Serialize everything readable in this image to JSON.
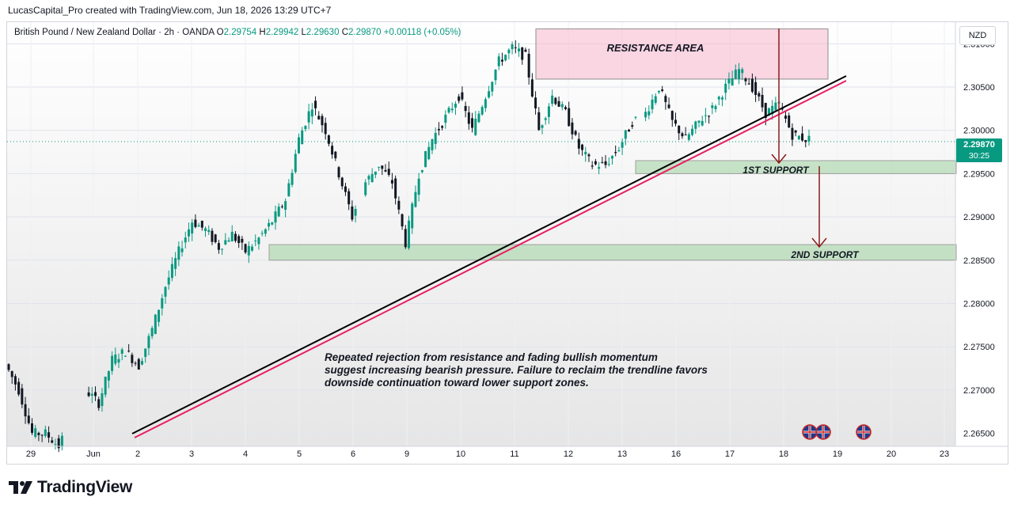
{
  "header": {
    "credit": "LucasCapital_Pro created with TradingView.com, Jun 18, 2026 13:29 UTC+7"
  },
  "legend": {
    "symbol": "British Pound / New Zealand Dollar · 2h · OANDA",
    "o_label": "O",
    "o": "2.29754",
    "h_label": "H",
    "h": "2.29942",
    "l_label": "L",
    "l": "2.29630",
    "c_label": "C",
    "c": "2.29870",
    "change": "+0.00118 (+0.05%)"
  },
  "currency": "NZD",
  "last_price": {
    "value": "2.29870",
    "countdown": "30:25"
  },
  "logo_text": "TradingView",
  "colors": {
    "up": "#089981",
    "down": "#131722",
    "resistance": "#f8bbd0",
    "support": "#a5d6a7",
    "trendline_black": "#000000",
    "trendline_pink": "#e91e63",
    "arrow": "#8b1a1a"
  },
  "chart_data": {
    "type": "candlestick",
    "title": "British Pound / New Zealand Dollar · 2h · OANDA",
    "y_ticks": [
      "2.31000",
      "2.30500",
      "2.30000",
      "2.29500",
      "2.29000",
      "2.28500",
      "2.28000",
      "2.27500",
      "2.27000",
      "2.26500"
    ],
    "y_tick_values": [
      2.31,
      2.305,
      2.3,
      2.295,
      2.29,
      2.285,
      2.28,
      2.275,
      2.27,
      2.265
    ],
    "ylim": [
      2.2635,
      2.3125
    ],
    "x_ticks": [
      "29",
      "Jun",
      "2",
      "3",
      "4",
      "5",
      "6",
      "9",
      "10",
      "11",
      "12",
      "13",
      "16",
      "17",
      "18",
      "19",
      "20",
      "23"
    ],
    "zones": [
      {
        "label": "RESISTANCE AREA",
        "low": 2.3062,
        "high": 2.312,
        "x_start": "Jun 11",
        "x_end": "Jun 18"
      },
      {
        "label": "1ST SUPPORT",
        "low": 2.295,
        "high": 2.2965,
        "x_start": "Jun 13",
        "x_end": "Jun 19"
      },
      {
        "label": "2ND SUPPORT",
        "low": 2.285,
        "high": 2.2868,
        "x_start": "Jun 4",
        "x_end": "Jun 19"
      }
    ],
    "trendline": {
      "from": [
        "Jun 1",
        2.2638
      ],
      "to": [
        "Jun 19",
        2.3065
      ]
    },
    "annotation": [
      "Repeated rejection from resistance and fading bullish momentum",
      " suggest increasing bearish pressure. Failure to reclaim the trendline favors",
      " downside continuation toward lower support zones."
    ],
    "path_points": [
      [
        0,
        2.273
      ],
      [
        4,
        2.27
      ],
      [
        8,
        2.265
      ],
      [
        12,
        2.265
      ],
      [
        16,
        2.2635
      ],
      [
        24,
        2.27
      ],
      [
        28,
        2.2685
      ],
      [
        32,
        2.2735
      ],
      [
        36,
        2.2745
      ],
      [
        40,
        2.2728
      ],
      [
        44,
        2.277
      ],
      [
        48,
        2.282
      ],
      [
        52,
        2.286
      ],
      [
        56,
        2.2895
      ],
      [
        60,
        2.2885
      ],
      [
        64,
        2.2865
      ],
      [
        68,
        2.288
      ],
      [
        72,
        2.286
      ],
      [
        76,
        2.2875
      ],
      [
        80,
        2.2895
      ],
      [
        84,
        2.292
      ],
      [
        88,
        2.299
      ],
      [
        92,
        2.303
      ],
      [
        96,
        2.3
      ],
      [
        100,
        2.295
      ],
      [
        104,
        2.29
      ],
      [
        108,
        2.294
      ],
      [
        112,
        2.296
      ],
      [
        116,
        2.294
      ],
      [
        120,
        2.287
      ],
      [
        124,
        2.295
      ],
      [
        128,
        2.299
      ],
      [
        132,
        2.3015
      ],
      [
        136,
        2.304
      ],
      [
        140,
        2.3
      ],
      [
        144,
        2.304
      ],
      [
        148,
        2.308
      ],
      [
        152,
        2.3095
      ],
      [
        156,
        2.3085
      ],
      [
        160,
        2.3
      ],
      [
        164,
        2.304
      ],
      [
        168,
        2.302
      ],
      [
        172,
        2.298
      ],
      [
        176,
        2.296
      ],
      [
        180,
        2.296
      ],
      [
        184,
        2.298
      ],
      [
        188,
        2.301
      ],
      [
        192,
        2.302
      ],
      [
        196,
        2.305
      ],
      [
        200,
        2.301
      ],
      [
        204,
        2.299
      ],
      [
        208,
        2.301
      ],
      [
        212,
        2.3025
      ],
      [
        216,
        2.305
      ],
      [
        220,
        2.307
      ],
      [
        224,
        2.305
      ],
      [
        228,
        2.302
      ],
      [
        232,
        2.303
      ],
      [
        236,
        2.2995
      ],
      [
        240,
        2.299
      ]
    ],
    "path_x_domain": [
      0,
      240
    ]
  }
}
